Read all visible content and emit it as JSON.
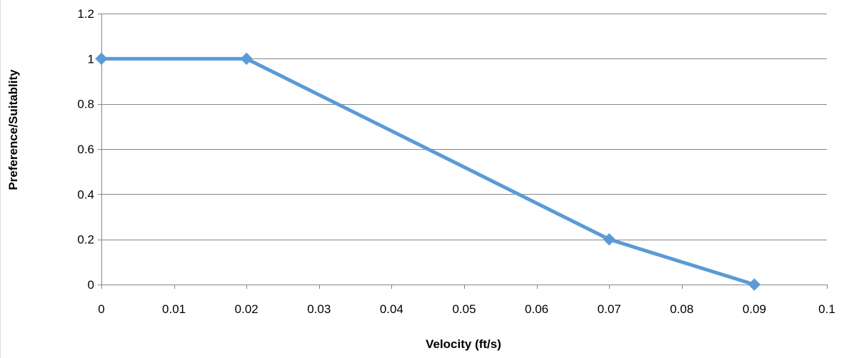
{
  "chart_data": {
    "type": "line",
    "title": "",
    "xlabel": "Velocity (ft/s)",
    "ylabel": "Preference/Suitablity",
    "xlim": [
      0,
      0.1
    ],
    "ylim": [
      0,
      1.2
    ],
    "x_ticks": [
      "0",
      "0.01",
      "0.02",
      "0.03",
      "0.04",
      "0.05",
      "0.06",
      "0.07",
      "0.08",
      "0.09",
      "0.1"
    ],
    "y_ticks": [
      "0",
      "0.2",
      "0.4",
      "0.6",
      "0.8",
      "1",
      "1.2"
    ],
    "grid": "horizontal",
    "legend": "none",
    "marker": "diamond",
    "series_color": "#5b9bd5",
    "series": [
      {
        "x": [
          0,
          0.02,
          0.07,
          0.09
        ],
        "y": [
          1,
          1,
          0.2,
          0
        ]
      }
    ]
  }
}
